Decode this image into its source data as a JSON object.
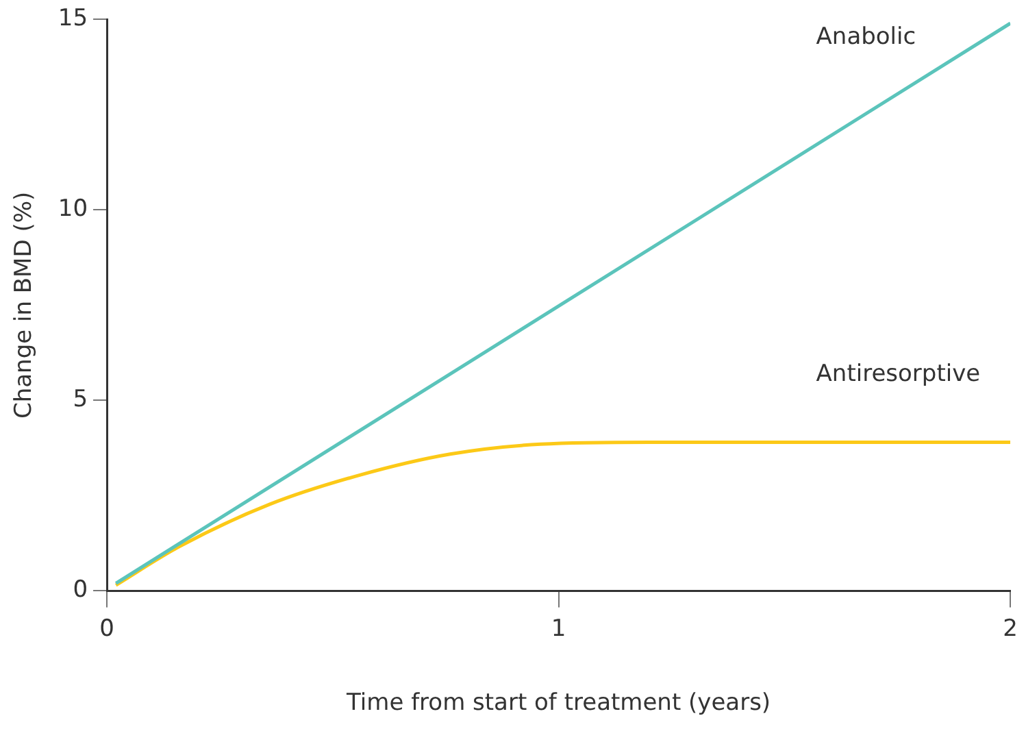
{
  "chart_data": {
    "type": "line",
    "xlabel": "Time from start of treatment (years)",
    "ylabel": "Change in BMD (%)",
    "xlim": [
      0,
      2
    ],
    "xticks": [
      0,
      1,
      2
    ],
    "ylim": [
      0,
      15
    ],
    "yticks": [
      0,
      5,
      10,
      15
    ],
    "grid": false,
    "legend": false,
    "marker": "none",
    "line_style": "solid",
    "series": [
      {
        "name": "Anabolic",
        "color": "#5bc4bb",
        "x": [
          0.02,
          2
        ],
        "values": [
          0.2,
          14.9
        ]
      },
      {
        "name": "Antiresorptive",
        "color": "#fcc917",
        "x": [
          0.02,
          0.16,
          0.36,
          0.56,
          0.76,
          0.96,
          1.2,
          1.6,
          2
        ],
        "values": [
          0.15,
          1.16,
          2.27,
          3.04,
          3.59,
          3.85,
          3.9,
          3.9,
          3.9
        ]
      }
    ]
  }
}
